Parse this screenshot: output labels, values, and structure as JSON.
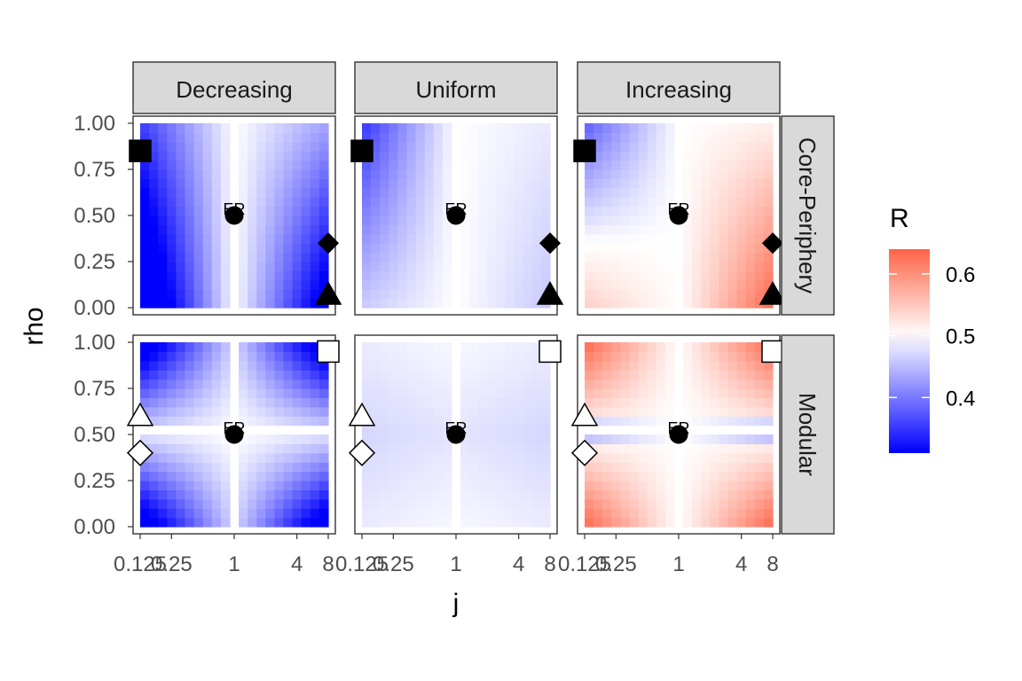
{
  "chart_data": {
    "type": "heatmap",
    "xlabel": "j",
    "ylabel": "rho",
    "x_scale": "log2",
    "xlim": [
      0.125,
      8
    ],
    "ylim": [
      0,
      1
    ],
    "x_ticks": [
      0.125,
      0.25,
      1,
      4,
      8
    ],
    "x_tick_labels": [
      "0.125",
      "0.25",
      "1",
      "4",
      "8"
    ],
    "y_ticks": [
      0,
      0.25,
      0.5,
      0.75,
      1
    ],
    "y_tick_labels": [
      "0.00",
      "0.25",
      "0.50",
      "0.75",
      "1.00"
    ],
    "columns": [
      "Decreasing",
      "Uniform",
      "Increasing"
    ],
    "rows": [
      "Core-Periphery",
      "Modular"
    ],
    "fill": {
      "name": "R",
      "low_color": "#0000ff",
      "mid_color": "#ffffff",
      "high_color": "#ff6347",
      "midpoint": 0.5,
      "limits": [
        0.31,
        0.64
      ],
      "breaks": [
        0.4,
        0.5,
        0.6
      ],
      "break_labels": [
        "0.4",
        "0.5",
        "0.6"
      ]
    },
    "markers": {
      "Core-Periphery": [
        {
          "shape": "square",
          "filled": true,
          "j": 0.125,
          "rho": 0.85
        },
        {
          "shape": "circle",
          "filled": true,
          "j": 1,
          "rho": 0.5,
          "label": "ER"
        },
        {
          "shape": "diamond",
          "filled": true,
          "j": 8,
          "rho": 0.35
        },
        {
          "shape": "triangle",
          "filled": true,
          "j": 8,
          "rho": 0.07
        }
      ],
      "Modular": [
        {
          "shape": "square",
          "filled": false,
          "j": 8,
          "rho": 0.95
        },
        {
          "shape": "triangle",
          "filled": false,
          "j": 0.125,
          "rho": 0.6
        },
        {
          "shape": "diamond",
          "filled": false,
          "j": 0.125,
          "rho": 0.4
        },
        {
          "shape": "circle",
          "filled": true,
          "j": 1,
          "rho": 0.5,
          "label": "ER"
        }
      ]
    },
    "panel_value_summary": [
      {
        "row": "Core-Periphery",
        "col": "Decreasing",
        "min": 0.31,
        "max": 0.5
      },
      {
        "row": "Core-Periphery",
        "col": "Uniform",
        "min": 0.38,
        "max": 0.5
      },
      {
        "row": "Core-Periphery",
        "col": "Increasing",
        "min": 0.4,
        "max": 0.62
      },
      {
        "row": "Modular",
        "col": "Decreasing",
        "min": 0.32,
        "max": 0.5
      },
      {
        "row": "Modular",
        "col": "Uniform",
        "min": 0.47,
        "max": 0.5
      },
      {
        "row": "Modular",
        "col": "Increasing",
        "min": 0.44,
        "max": 0.63
      }
    ]
  }
}
